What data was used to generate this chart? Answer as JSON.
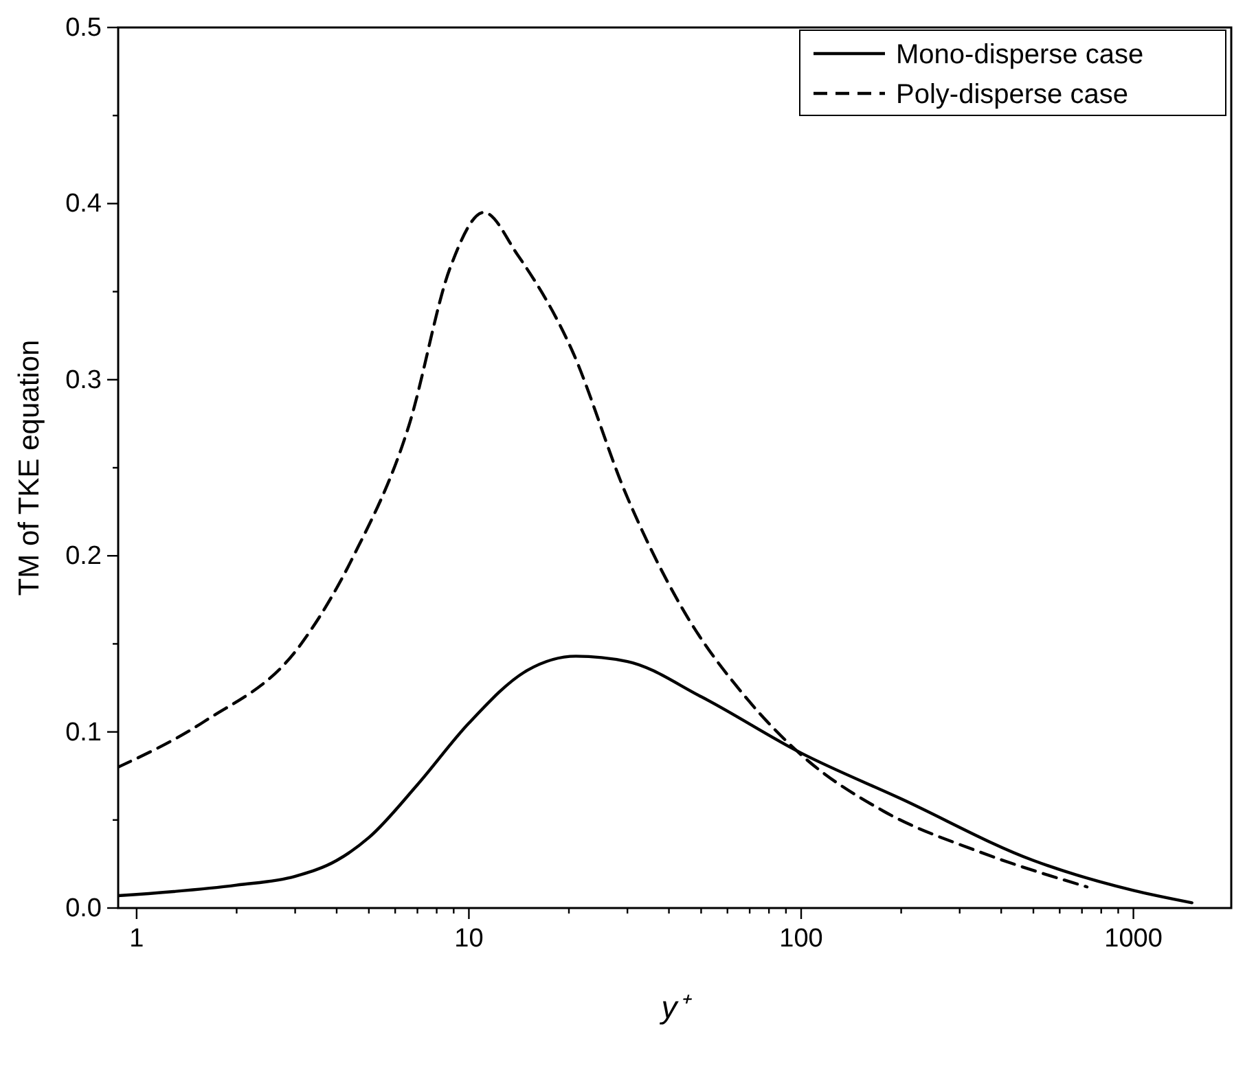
{
  "chart_data": {
    "type": "line",
    "xlabel": "y⁺",
    "ylabel": "TM of TKE equation",
    "log": "x",
    "xlim": [
      0.88,
      1970
    ],
    "ylim": [
      0,
      0.5
    ],
    "xticks": [
      {
        "value": 1,
        "label": "1"
      },
      {
        "value": 2,
        "label": null
      },
      {
        "value": 3,
        "label": null
      },
      {
        "value": 4,
        "label": null
      },
      {
        "value": 5,
        "label": null
      },
      {
        "value": 6,
        "label": null
      },
      {
        "value": 7,
        "label": null
      },
      {
        "value": 8,
        "label": null
      },
      {
        "value": 9,
        "label": null
      },
      {
        "value": 10,
        "label": "10"
      },
      {
        "value": 20,
        "label": null
      },
      {
        "value": 30,
        "label": null
      },
      {
        "value": 40,
        "label": null
      },
      {
        "value": 50,
        "label": null
      },
      {
        "value": 60,
        "label": null
      },
      {
        "value": 70,
        "label": null
      },
      {
        "value": 80,
        "label": null
      },
      {
        "value": 90,
        "label": null
      },
      {
        "value": 100,
        "label": "100"
      },
      {
        "value": 200,
        "label": null
      },
      {
        "value": 300,
        "label": null
      },
      {
        "value": 400,
        "label": null
      },
      {
        "value": 500,
        "label": null
      },
      {
        "value": 600,
        "label": null
      },
      {
        "value": 700,
        "label": null
      },
      {
        "value": 800,
        "label": null
      },
      {
        "value": 900,
        "label": null
      },
      {
        "value": 1000,
        "label": "1000"
      }
    ],
    "yticks": [
      {
        "value": 0,
        "label": "0.0"
      },
      {
        "value": 0.05,
        "label": null
      },
      {
        "value": 0.1,
        "label": "0.1"
      },
      {
        "value": 0.15,
        "label": null
      },
      {
        "value": 0.2,
        "label": "0.2"
      },
      {
        "value": 0.25,
        "label": null
      },
      {
        "value": 0.3,
        "label": "0.3"
      },
      {
        "value": 0.35,
        "label": null
      },
      {
        "value": 0.4,
        "label": "0.4"
      },
      {
        "value": 0.45,
        "label": null
      },
      {
        "value": 0.5,
        "label": "0.5"
      }
    ],
    "legend": "top right",
    "grid": false,
    "series": [
      {
        "name": "Mono-disperse case",
        "color": "#000000",
        "line_style": "solid",
        "x": [
          0.88,
          2,
          3,
          4,
          5,
          7,
          10,
          15,
          21,
          30,
          50,
          100,
          200,
          500,
          1000,
          1500
        ],
        "values": [
          0.007,
          0.013,
          0.018,
          0.027,
          0.04,
          0.07,
          0.105,
          0.135,
          0.143,
          0.14,
          0.12,
          0.088,
          0.062,
          0.027,
          0.01,
          0.003
        ]
      },
      {
        "name": "Poly-disperse case",
        "color": "#000000",
        "line_style": "dashed",
        "x": [
          0.88,
          1.6,
          3.1,
          4.5,
          6.6,
          8.8,
          11.1,
          14,
          20.4,
          29.7,
          43.3,
          69.3,
          100,
          177,
          343,
          725
        ],
        "values": [
          0.08,
          0.106,
          0.149,
          0.2,
          0.274,
          0.364,
          0.395,
          0.371,
          0.317,
          0.235,
          0.172,
          0.118,
          0.087,
          0.055,
          0.032,
          0.012
        ]
      }
    ]
  }
}
